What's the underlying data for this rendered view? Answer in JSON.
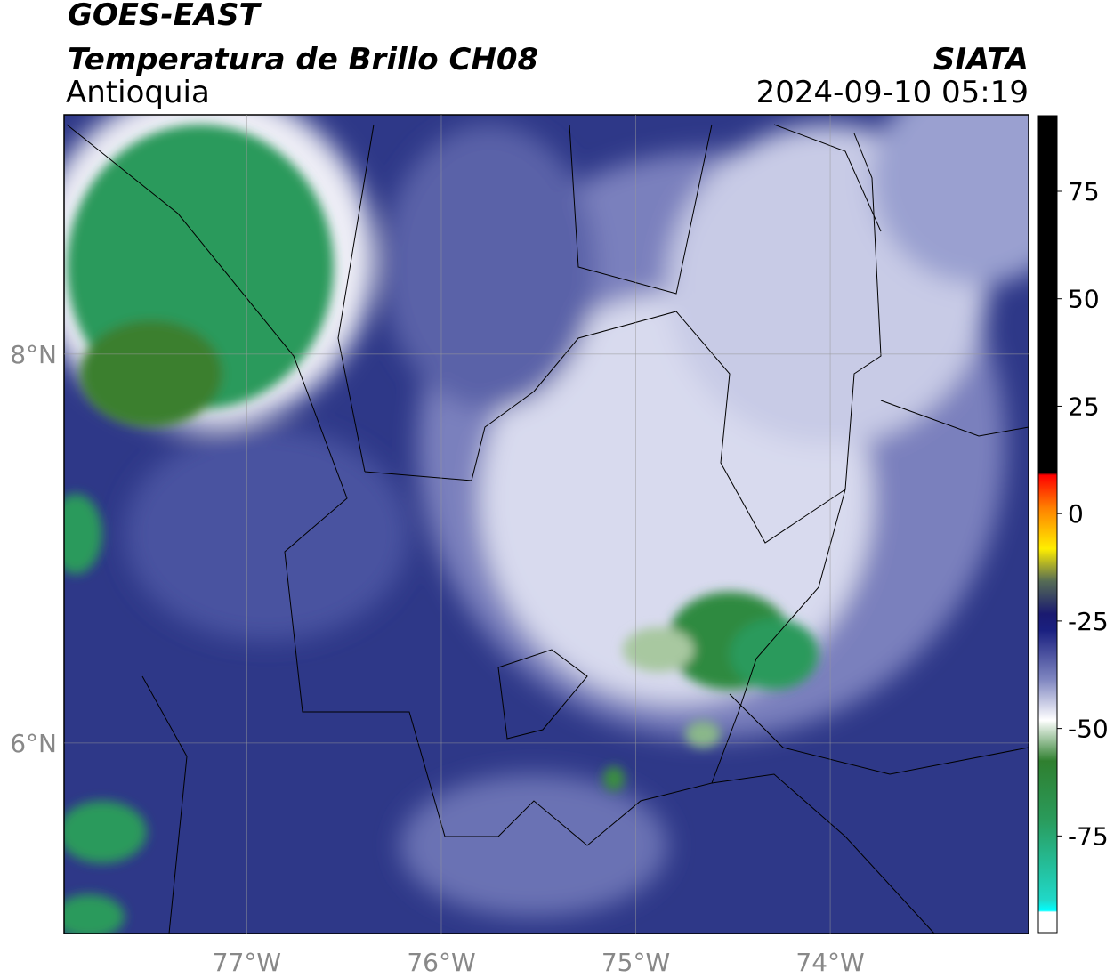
{
  "header": {
    "title": "GOES-EAST",
    "subtitle": "Temperatura de Brillo CH08",
    "region": "Antioquia",
    "source": "SIATA",
    "datetime": "2024-09-10 05:19"
  },
  "map": {
    "xlim": [
      -77.94,
      -72.98
    ],
    "ylim": [
      5.02,
      9.23
    ],
    "xticks": [
      {
        "value": -77,
        "label": "77°W"
      },
      {
        "value": -76,
        "label": "76°W"
      },
      {
        "value": -75,
        "label": "75°W"
      },
      {
        "value": -74,
        "label": "74°W"
      }
    ],
    "yticks": [
      {
        "value": 8,
        "label": "8°N"
      },
      {
        "value": 6,
        "label": "6°N"
      }
    ],
    "grid": true
  },
  "colorbar": {
    "lim": [
      -97.5,
      92.6
    ],
    "ticks": [
      75,
      50,
      25,
      0,
      -25,
      -50,
      -75
    ]
  }
}
